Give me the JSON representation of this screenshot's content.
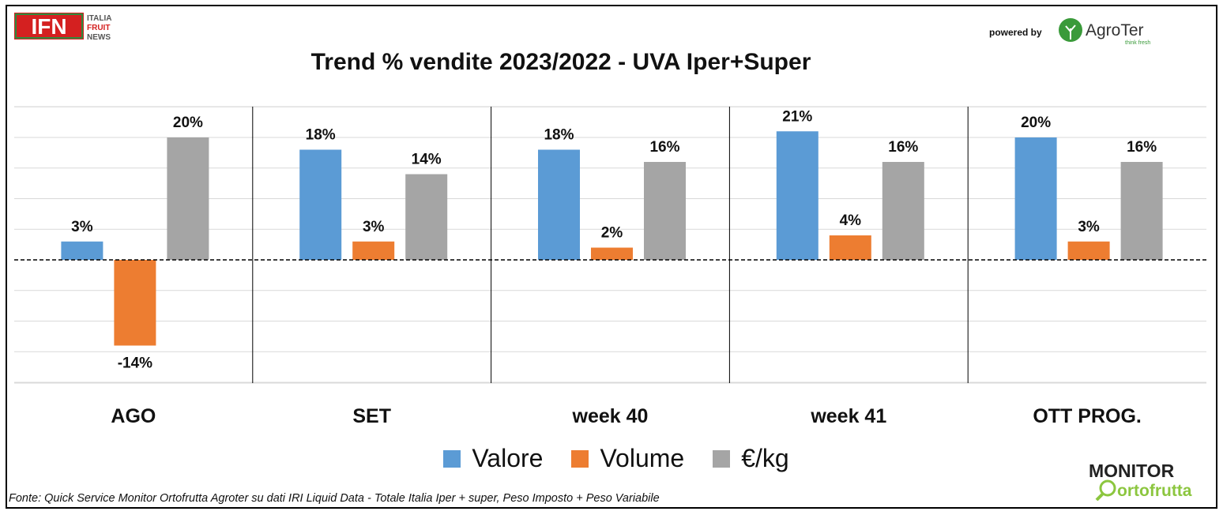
{
  "header": {
    "ifn_logo_text": "IFN",
    "ifn_sub": [
      "ITALIA",
      "FRUIT",
      "NEWS"
    ],
    "powered_by": "powered by",
    "agroter_text": "AgroTer",
    "agroter_tagline": "think fresh"
  },
  "chart_data": {
    "type": "bar",
    "title": "Trend % vendite 2023/2022 - UVA Iper+Super",
    "categories": [
      "AGO",
      "SET",
      "week 40",
      "week 41",
      "OTT PROG."
    ],
    "series": [
      {
        "name": "Valore",
        "color": "#5b9bd5",
        "values": [
          3,
          18,
          18,
          21,
          20
        ],
        "labels": [
          "3%",
          "18%",
          "18%",
          "21%",
          "20%"
        ]
      },
      {
        "name": "Volume",
        "color": "#ed7d31",
        "values": [
          -14,
          3,
          2,
          4,
          3
        ],
        "labels": [
          "-14%",
          "3%",
          "2%",
          "4%",
          "3%"
        ]
      },
      {
        "name": "€/kg",
        "color": "#a5a5a5",
        "values": [
          20,
          14,
          16,
          16,
          16
        ],
        "labels": [
          "20%",
          "14%",
          "16%",
          "16%",
          "16%"
        ]
      }
    ],
    "ylim": [
      -20,
      25
    ],
    "grid": true,
    "zero_line": "dashed",
    "legend": "bottom"
  },
  "footer": {
    "source": "Fonte: Quick Service Monitor Ortofrutta Agroter su dati IRI Liquid Data - Totale Italia Iper + super, Peso Imposto + Peso Variabile",
    "monitor_top": "MONITOR",
    "monitor_bottom": "ortofrutta"
  }
}
